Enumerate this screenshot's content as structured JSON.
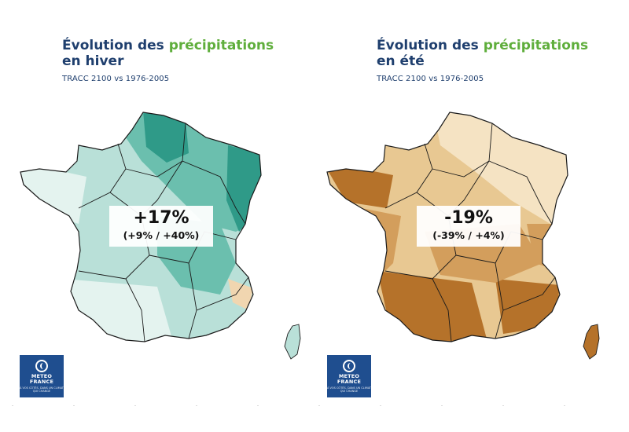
{
  "panels": [
    {
      "title_line1_main": "Évolution des ",
      "title_line1_accent": "précipitations",
      "title_line2": "en hiver",
      "subtitle": "TRACC 2100 vs 1976-2005",
      "value": "+17%",
      "range": "(+9% / +40%)",
      "palette": {
        "dark": "#2f9a88",
        "mid": "#6bbfae",
        "light": "#b9e0d8",
        "pale": "#e4f3ef",
        "dry": "#f1d6b0"
      }
    },
    {
      "title_line1_main": "Évolution des ",
      "title_line1_accent": "précipitations",
      "title_line2": "en été",
      "subtitle": "TRACC 2100 vs 1976-2005",
      "value": "-19%",
      "range": "(-39% / +4%)",
      "palette": {
        "dark": "#b5722a",
        "mid": "#d39e5c",
        "light": "#e8c892",
        "pale": "#f5e3c3",
        "dry": "#f5e3c3"
      }
    }
  ],
  "logo": {
    "name_line1": "METEO",
    "name_line2": "FRANCE",
    "tagline": "À VOS CÔTÉS, DANS UN CLIMAT QUI CHANGE"
  },
  "colors": {
    "title": "#1f3f6e",
    "accent": "#5fae3c",
    "logo_bg": "#1f4e8f"
  }
}
